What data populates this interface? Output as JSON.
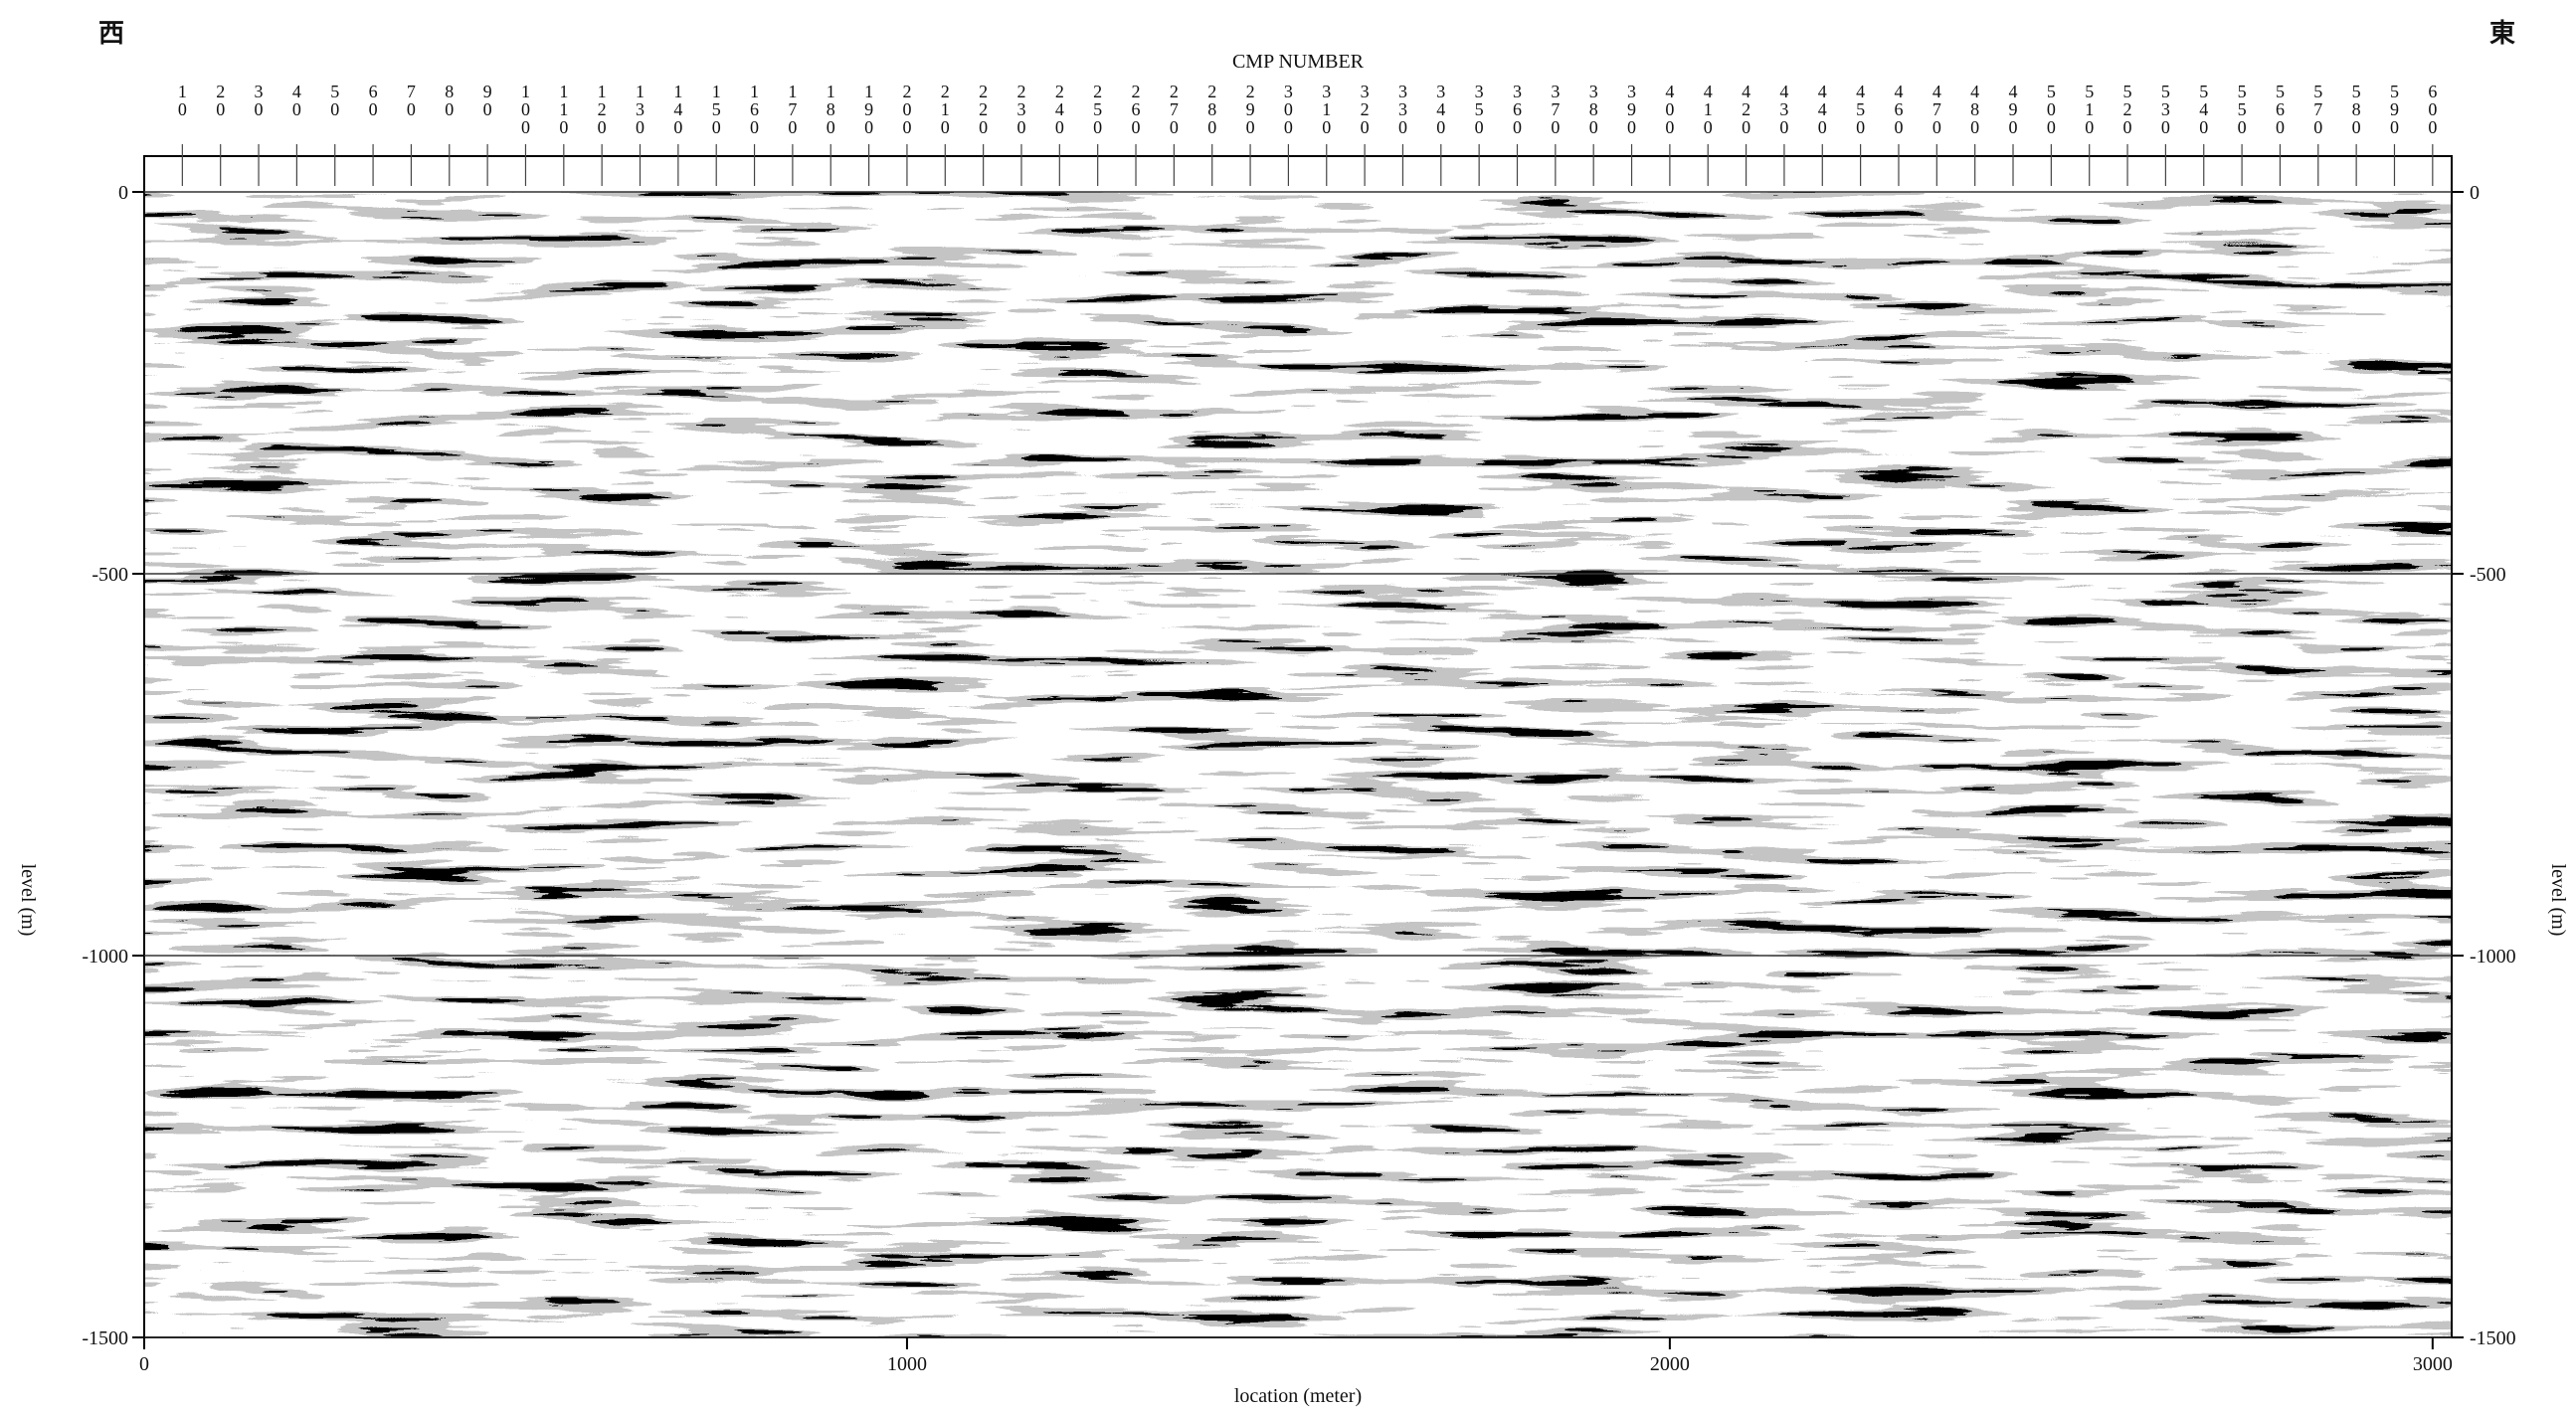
{
  "chart_data": {
    "type": "seismic-section",
    "title": "CMP NUMBER",
    "west_label": "西",
    "east_label": "東",
    "xlabel": "location (meter)",
    "ylabel": "level (m)",
    "xlim": [
      0,
      3025
    ],
    "xticks": [
      0,
      1000,
      2000,
      3000
    ],
    "ylim": [
      -1500,
      0
    ],
    "yticks": [
      0,
      -500,
      -1000,
      -1500
    ],
    "x2lim": [
      0,
      605
    ],
    "x2ticks": [
      10,
      20,
      30,
      40,
      50,
      60,
      70,
      80,
      90,
      100,
      110,
      120,
      130,
      140,
      150,
      160,
      170,
      180,
      190,
      200,
      210,
      220,
      230,
      240,
      250,
      260,
      270,
      280,
      290,
      300,
      310,
      320,
      330,
      340,
      350,
      360,
      370,
      380,
      390,
      400,
      410,
      420,
      430,
      440,
      450,
      460,
      470,
      480,
      490,
      500,
      510,
      520,
      530,
      540,
      550,
      560,
      570,
      580,
      590,
      600
    ],
    "grid": true
  }
}
